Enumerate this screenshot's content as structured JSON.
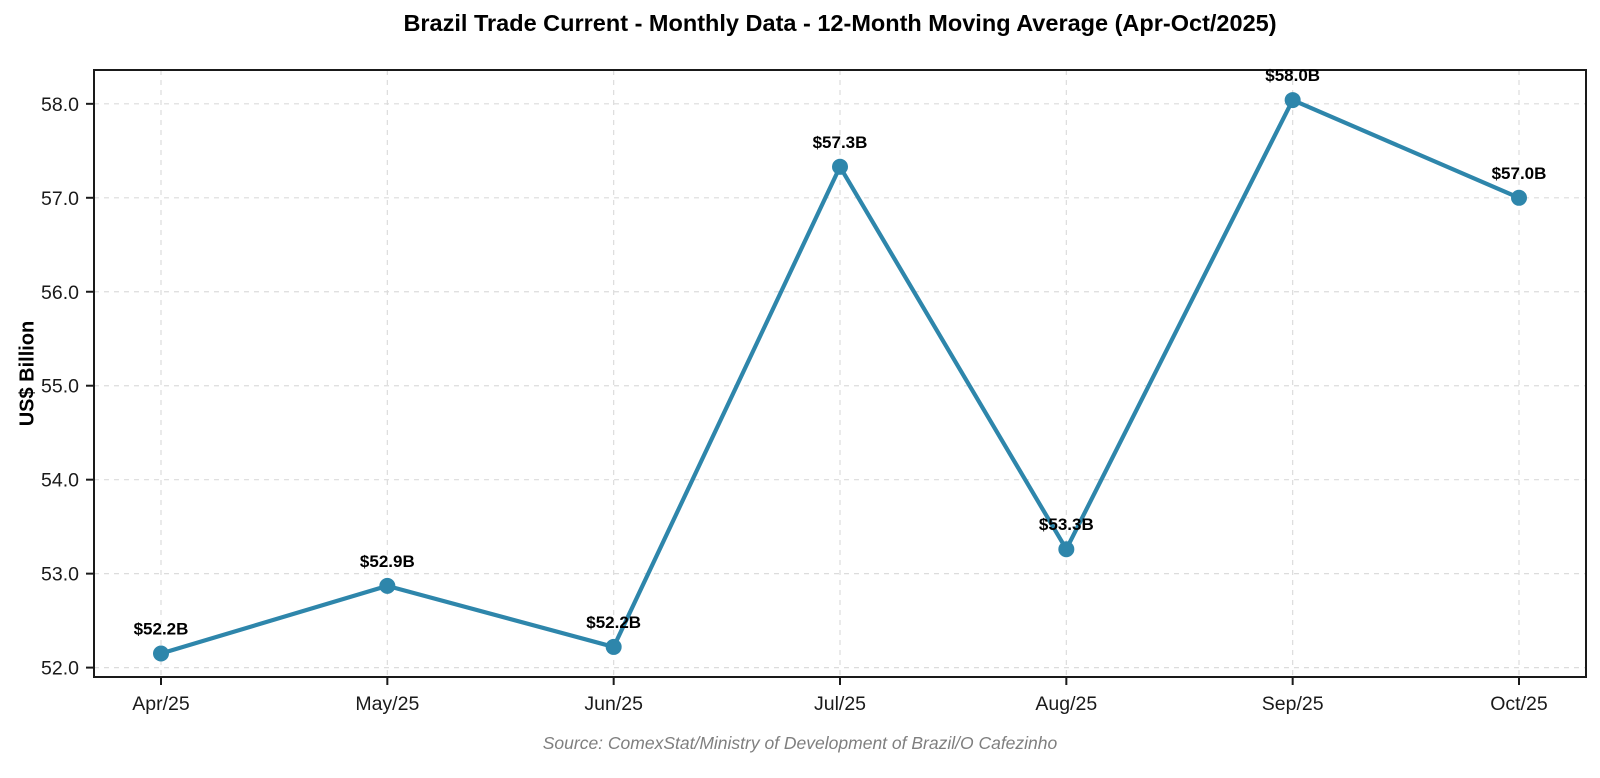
{
  "chart_data": {
    "type": "line",
    "title": "Brazil Trade Current - Monthly Data - 12-Month Moving Average (Apr-Oct/2025)",
    "xlabel": "",
    "ylabel": "US$ Billion",
    "categories": [
      "Apr/25",
      "May/25",
      "Jun/25",
      "Jul/25",
      "Aug/25",
      "Sep/25",
      "Oct/25"
    ],
    "values": [
      52.15,
      52.87,
      52.22,
      57.33,
      53.26,
      58.04,
      57.0
    ],
    "point_labels": [
      "$52.2B",
      "$52.9B",
      "$52.2B",
      "$57.3B",
      "$53.3B",
      "$58.0B",
      "$57.0B"
    ],
    "yticks": [
      52.0,
      53.0,
      54.0,
      55.0,
      56.0,
      57.0,
      58.0
    ],
    "ytick_labels": [
      "52.0",
      "53.0",
      "54.0",
      "55.0",
      "56.0",
      "57.0",
      "58.0"
    ],
    "ylim": [
      51.9,
      58.36
    ],
    "grid": true,
    "grid_style": "dashed",
    "legend": false,
    "marker": "circle",
    "source": "Source: ComexStat/Ministry of Development of Brazil/O Cafezinho",
    "colors": {
      "line": "#2e86ab",
      "marker": "#2e86ab",
      "grid": "#dcdcdc",
      "axis": "#1a1a1a",
      "tick_label": "#1a1a1a",
      "point_label": "#000000",
      "title": "#000000",
      "source_text": "#7f7f7f",
      "background": "#ffffff"
    }
  }
}
